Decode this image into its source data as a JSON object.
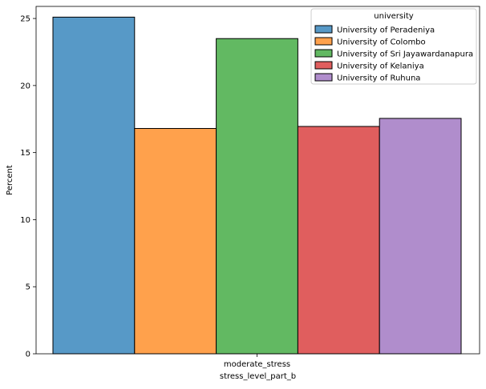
{
  "chart_data": {
    "type": "bar",
    "categories": [
      "moderate_stress"
    ],
    "xlabel": "stress_level_part_b",
    "ylabel": "Percent",
    "ylim": [
      0,
      25.9
    ],
    "yticks": [
      0,
      5,
      10,
      15,
      20,
      25
    ],
    "grid": false,
    "legend": {
      "title": "university",
      "placement": "top-right"
    },
    "series": [
      {
        "name": "University of Peradeniya",
        "values": [
          25.1
        ],
        "color": "#5799c7"
      },
      {
        "name": "University of Colombo",
        "values": [
          16.8
        ],
        "color": "#ffa14c"
      },
      {
        "name": "University of Sri Jayawardanapura",
        "values": [
          23.5
        ],
        "color": "#62b962"
      },
      {
        "name": "University of Kelaniya",
        "values": [
          16.95
        ],
        "color": "#e05e5e"
      },
      {
        "name": "University of Ruhuna",
        "values": [
          17.55
        ],
        "color": "#b08dcc"
      }
    ]
  }
}
